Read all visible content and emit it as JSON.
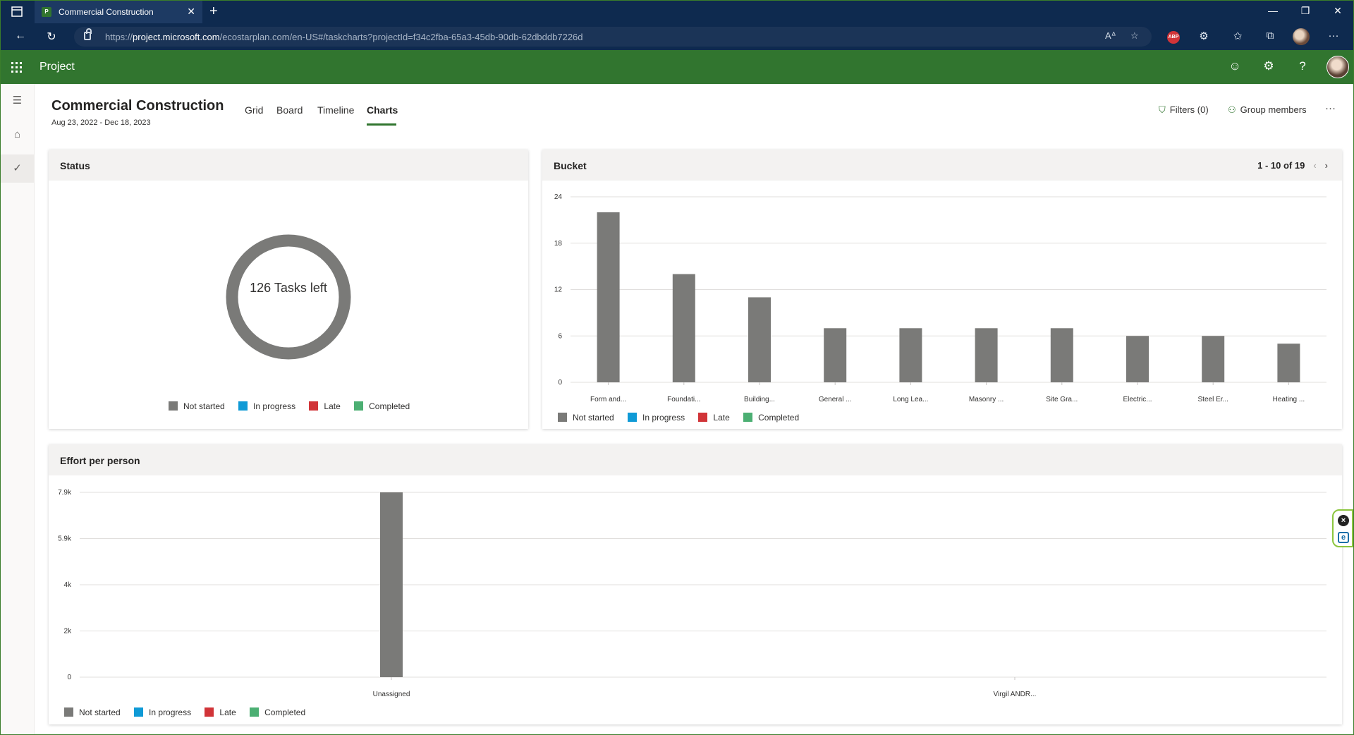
{
  "browser": {
    "tab_title": "Commercial Construction",
    "tab_favicon": "P",
    "url_prefix": "https://",
    "url_host": "project.microsoft.com",
    "url_rest": "/ecostarplan.com/en-US#/taskcharts?projectId=f34c2fba-65a3-45db-90db-62dbddb7226d",
    "abp_label": "ABP"
  },
  "app": {
    "name": "Project"
  },
  "project": {
    "title": "Commercial Construction",
    "dates": "Aug 23, 2022 - Dec 18, 2023"
  },
  "views": {
    "grid": "Grid",
    "board": "Board",
    "timeline": "Timeline",
    "charts": "Charts"
  },
  "header_actions": {
    "filters": "Filters (0)",
    "group_members": "Group members",
    "more": "···"
  },
  "legend": {
    "not_started": "Not started",
    "in_progress": "In progress",
    "late": "Late",
    "completed": "Completed"
  },
  "colors": {
    "not_started": "#7a7a78",
    "in_progress": "#0f9ad6",
    "late": "#d13438",
    "completed": "#4caf73",
    "brand": "#31752f"
  },
  "status_card": {
    "title": "Status",
    "center_text": "126 Tasks left"
  },
  "bucket_card": {
    "title": "Bucket",
    "pager": "1 - 10 of 19"
  },
  "effort_card": {
    "title": "Effort per person"
  },
  "chart_data": [
    {
      "type": "pie",
      "title": "Status",
      "labels": [
        "Not started",
        "In progress",
        "Late",
        "Completed"
      ],
      "values": [
        126,
        0,
        0,
        0
      ]
    },
    {
      "type": "bar",
      "title": "Bucket",
      "categories": [
        "Form and...",
        "Foundati...",
        "Building...",
        "General ...",
        "Long Lea...",
        "Masonry ...",
        "Site Gra...",
        "Electric...",
        "Steel Er...",
        "Heating ..."
      ],
      "series": [
        {
          "name": "Not started",
          "values": [
            22,
            14,
            11,
            7,
            7,
            7,
            7,
            6,
            6,
            5
          ]
        }
      ],
      "yticks": [
        "0",
        "6",
        "12",
        "18",
        "24"
      ],
      "ylim": [
        0,
        24
      ]
    },
    {
      "type": "bar",
      "title": "Effort per person",
      "categories": [
        "Unassigned",
        "Virgil ANDR..."
      ],
      "series": [
        {
          "name": "Not started",
          "values": [
            7900,
            0
          ]
        }
      ],
      "yticks": [
        "0",
        "2k",
        "4k",
        "5.9k",
        "7.9k"
      ],
      "ylim": [
        0,
        7900
      ]
    }
  ]
}
